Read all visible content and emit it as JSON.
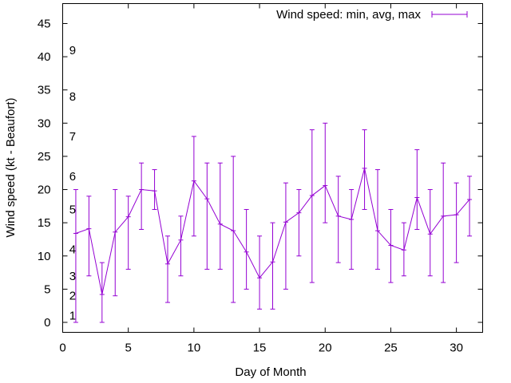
{
  "chart_data": {
    "type": "line",
    "xlabel": "Day of Month",
    "ylabel": "Wind speed (kt - Beaufort)",
    "xlim": [
      0,
      32
    ],
    "ylim": [
      -1.5,
      48
    ],
    "x_ticks": [
      0,
      5,
      10,
      15,
      20,
      25,
      30
    ],
    "y_ticks": [
      0,
      5,
      10,
      15,
      20,
      25,
      30,
      35,
      40,
      45
    ],
    "grid": false,
    "legend_position": "top-right",
    "series": [
      {
        "name": "Wind speed: min, avg, max",
        "color": "#9400d3",
        "points": [
          {
            "x": 1,
            "avg": 13.4,
            "min": 0,
            "max": 20
          },
          {
            "x": 2,
            "avg": 14.1,
            "min": 7,
            "max": 19
          },
          {
            "x": 3,
            "avg": 4.2,
            "min": 0,
            "max": 9
          },
          {
            "x": 4,
            "avg": 13.6,
            "min": 4,
            "max": 20
          },
          {
            "x": 5,
            "avg": 15.9,
            "min": 8,
            "max": 19
          },
          {
            "x": 6,
            "avg": 20.0,
            "min": 14,
            "max": 24
          },
          {
            "x": 7,
            "avg": 19.8,
            "min": 17,
            "max": 23
          },
          {
            "x": 8,
            "avg": 8.8,
            "min": 3,
            "max": 13
          },
          {
            "x": 9,
            "avg": 12.4,
            "min": 7,
            "max": 16
          },
          {
            "x": 10,
            "avg": 21.3,
            "min": 13,
            "max": 28
          },
          {
            "x": 11,
            "avg": 18.6,
            "min": 8,
            "max": 24
          },
          {
            "x": 12,
            "avg": 14.8,
            "min": 8,
            "max": 24
          },
          {
            "x": 13,
            "avg": 13.8,
            "min": 3,
            "max": 25
          },
          {
            "x": 14,
            "avg": 10.6,
            "min": 5,
            "max": 17
          },
          {
            "x": 15,
            "avg": 6.7,
            "min": 2,
            "max": 13
          },
          {
            "x": 16,
            "avg": 9.1,
            "min": 2,
            "max": 15
          },
          {
            "x": 17,
            "avg": 15.1,
            "min": 5,
            "max": 21
          },
          {
            "x": 18,
            "avg": 16.5,
            "min": 10,
            "max": 20
          },
          {
            "x": 19,
            "avg": 19.1,
            "min": 6,
            "max": 29
          },
          {
            "x": 20,
            "avg": 20.6,
            "min": 15,
            "max": 30
          },
          {
            "x": 21,
            "avg": 16.0,
            "min": 9,
            "max": 22
          },
          {
            "x": 22,
            "avg": 15.5,
            "min": 8,
            "max": 20
          },
          {
            "x": 23,
            "avg": 23.2,
            "min": 17,
            "max": 29
          },
          {
            "x": 24,
            "avg": 13.8,
            "min": 8,
            "max": 23
          },
          {
            "x": 25,
            "avg": 11.6,
            "min": 6,
            "max": 17
          },
          {
            "x": 26,
            "avg": 10.9,
            "min": 7,
            "max": 15
          },
          {
            "x": 27,
            "avg": 18.8,
            "min": 14,
            "max": 26
          },
          {
            "x": 28,
            "avg": 13.3,
            "min": 7,
            "max": 20
          },
          {
            "x": 29,
            "avg": 16.0,
            "min": 6,
            "max": 24
          },
          {
            "x": 30,
            "avg": 16.2,
            "min": 9,
            "max": 21
          },
          {
            "x": 31,
            "avg": 18.5,
            "min": 13,
            "max": 22
          }
        ]
      }
    ],
    "annotations": [
      {
        "text": "1",
        "x": 1,
        "y": 1
      },
      {
        "text": "2",
        "x": 1,
        "y": 4
      },
      {
        "text": "3",
        "x": 1,
        "y": 7
      },
      {
        "text": "4",
        "x": 1,
        "y": 11
      },
      {
        "text": "5",
        "x": 1,
        "y": 17
      },
      {
        "text": "6",
        "x": 1,
        "y": 22
      },
      {
        "text": "7",
        "x": 1,
        "y": 28
      },
      {
        "text": "8",
        "x": 1,
        "y": 34
      },
      {
        "text": "9",
        "x": 1,
        "y": 41
      }
    ]
  }
}
